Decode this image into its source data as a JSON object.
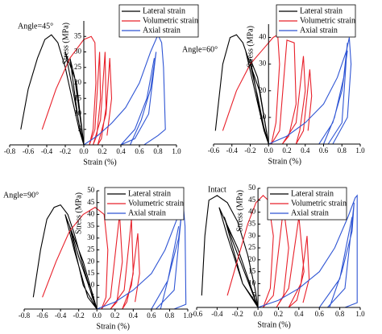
{
  "chart_data": [
    {
      "type": "line",
      "annotation": "Angle=45°",
      "x_label": "Strain (%)",
      "y_label": "Stress (MPa)",
      "xlim": [
        -0.8,
        1.0
      ],
      "xticks": [
        -0.8,
        -0.6,
        -0.4,
        -0.2,
        {
          "value": 0,
          "label": "0.0"
        },
        0.2,
        0.4,
        0.6,
        0.8,
        {
          "value": 1,
          "label": "1.0"
        }
      ],
      "ylim": [
        0,
        40
      ],
      "yticks": [
        5,
        10,
        15,
        20,
        25,
        30,
        35
      ],
      "series": [
        {
          "name": "Lateral strain",
          "color": "#000000",
          "x": [
            -0.68,
            -0.6,
            -0.5,
            -0.42,
            -0.35,
            -0.28,
            -0.2,
            -0.12,
            -0.05,
            0,
            -0.08,
            -0.2,
            -0.12,
            -0.04,
            0,
            -0.1,
            -0.15,
            -0.06,
            0
          ],
          "values": [
            5,
            18,
            28,
            34,
            35.5,
            33,
            25,
            14,
            5,
            0,
            20,
            30,
            18,
            5,
            0,
            22,
            28,
            8,
            0
          ]
        },
        {
          "name": "Volumetric strain",
          "color": "#e8202a",
          "x": [
            -0.45,
            -0.3,
            -0.15,
            0,
            0.08,
            0.12,
            0.13,
            0.1,
            0.06,
            0.12,
            0.17,
            0.18,
            0.14,
            0.1,
            0.18,
            0.23,
            0.24,
            0.19,
            0.15,
            0.24,
            0.28,
            0.3,
            0.25
          ],
          "values": [
            5,
            18,
            28,
            34,
            35,
            33,
            20,
            5,
            0,
            5,
            30,
            15,
            3,
            0,
            8,
            30,
            12,
            2,
            0,
            10,
            28,
            15,
            3
          ]
        },
        {
          "name": "Axial strain",
          "color": "#2f55d4",
          "x": [
            0,
            0.15,
            0.3,
            0.45,
            0.6,
            0.72,
            0.8,
            0.84,
            0.86,
            0.88,
            0.8,
            0.65,
            0.5,
            0.62,
            0.72,
            0.78,
            0.7,
            0.55,
            0.4,
            0.55,
            0.68,
            0.76
          ],
          "values": [
            0,
            3,
            7,
            12,
            20,
            30,
            35.5,
            33,
            25,
            5,
            3,
            0,
            0,
            8,
            18,
            30,
            10,
            2,
            0,
            5,
            15,
            28
          ]
        }
      ]
    },
    {
      "type": "line",
      "annotation": "Angle=60°",
      "x_label": "Strain (%)",
      "y_label": "Stress (MPa)",
      "xlim": [
        -0.6,
        1.0
      ],
      "xticks": [
        -0.6,
        -0.4,
        -0.2,
        {
          "value": 0,
          "label": "0.0"
        },
        0.2,
        0.4,
        0.6,
        0.8,
        {
          "value": 1,
          "label": "1.0"
        }
      ],
      "ylim": [
        0,
        45
      ],
      "yticks": [
        10,
        20,
        30,
        40
      ],
      "series": [
        {
          "name": "Lateral strain",
          "color": "#000000",
          "x": [
            -0.58,
            -0.5,
            -0.42,
            -0.35,
            -0.28,
            -0.2,
            -0.12,
            -0.05,
            0,
            -0.1,
            -0.25,
            -0.15,
            -0.05,
            0,
            -0.12,
            -0.2,
            -0.08,
            0
          ],
          "values": [
            5,
            30,
            40,
            41,
            38,
            30,
            18,
            6,
            0,
            20,
            35,
            20,
            5,
            0,
            25,
            32,
            10,
            0
          ]
        },
        {
          "name": "Volumetric strain",
          "color": "#e8202a",
          "x": [
            -0.5,
            -0.35,
            -0.2,
            -0.05,
            0.05,
            0.1,
            0.12,
            0.08,
            0.03,
            0.12,
            0.2,
            0.28,
            0.3,
            0.22,
            0.15,
            0.3,
            0.38,
            0.4,
            0.34,
            0.3,
            0.38,
            0.45,
            0.47,
            0.43
          ],
          "values": [
            5,
            20,
            30,
            36,
            40,
            41,
            30,
            8,
            0,
            5,
            39,
            38,
            15,
            3,
            0,
            8,
            33,
            20,
            5,
            0,
            5,
            28,
            18,
            5
          ]
        },
        {
          "name": "Axial strain",
          "color": "#2f55d4",
          "x": [
            0,
            0.2,
            0.4,
            0.6,
            0.75,
            0.85,
            0.88,
            0.9,
            0.86,
            0.7,
            0.6,
            0.72,
            0.82,
            0.86,
            0.8,
            0.65,
            0.55,
            0.7,
            0.8,
            0.86
          ],
          "values": [
            0,
            3,
            8,
            15,
            25,
            35,
            40,
            30,
            10,
            0,
            0,
            10,
            25,
            38,
            8,
            0,
            0,
            8,
            20,
            35
          ]
        }
      ]
    },
    {
      "type": "line",
      "annotation": "Angle=90°",
      "x_label": "Strain (%)",
      "y_label": "Stress (MPa)",
      "xlim": [
        -0.8,
        1.0
      ],
      "xticks": [
        -0.8,
        -0.6,
        -0.4,
        -0.2,
        {
          "value": 0,
          "label": "0.0"
        },
        0.2,
        0.4,
        0.6,
        0.8,
        {
          "value": 1,
          "label": "1.0"
        }
      ],
      "ylim": [
        0,
        50
      ],
      "yticks": [
        5,
        10,
        15,
        20,
        25,
        30,
        35,
        40,
        45,
        50
      ],
      "series": [
        {
          "name": "Lateral strain",
          "color": "#000000",
          "x": [
            -0.7,
            -0.62,
            -0.55,
            -0.47,
            -0.4,
            -0.32,
            -0.25,
            -0.15,
            -0.05,
            0,
            -0.15,
            -0.35,
            -0.25,
            -0.1,
            0,
            -0.2,
            -0.3,
            -0.15,
            0
          ],
          "values": [
            5,
            25,
            38,
            43,
            44,
            40,
            32,
            18,
            5,
            0,
            20,
            40,
            25,
            5,
            0,
            22,
            35,
            10,
            0
          ]
        },
        {
          "name": "Volumetric strain",
          "color": "#e8202a",
          "x": [
            -0.6,
            -0.45,
            -0.3,
            -0.15,
            -0.02,
            0.08,
            0.12,
            0.1,
            0.05,
            0.15,
            0.25,
            0.28,
            0.22,
            0.15,
            0.3,
            0.38,
            0.4,
            0.33,
            0.28,
            0.38,
            0.45,
            0.47,
            0.42
          ],
          "values": [
            5,
            20,
            33,
            40,
            43,
            40,
            25,
            5,
            0,
            5,
            40,
            20,
            3,
            0,
            8,
            38,
            15,
            3,
            0,
            10,
            32,
            15,
            3
          ]
        },
        {
          "name": "Axial strain",
          "color": "#2f55d4",
          "x": [
            0,
            0.2,
            0.4,
            0.6,
            0.75,
            0.88,
            0.95,
            0.97,
            0.98,
            0.85,
            0.7,
            0.8,
            0.9,
            0.93,
            0.85,
            0.65,
            0.6,
            0.78,
            0.9
          ],
          "values": [
            0,
            3,
            8,
            15,
            25,
            38,
            44,
            35,
            2,
            0,
            0,
            15,
            30,
            40,
            8,
            0,
            0,
            12,
            35
          ]
        }
      ]
    },
    {
      "type": "line",
      "annotation": "Intact",
      "x_label": "Strain (%)",
      "y_label": "Stress (MPa)",
      "xlim": [
        -0.6,
        1.0
      ],
      "xticks": [
        -0.6,
        -0.4,
        -0.2,
        {
          "value": 0,
          "label": "0.0"
        },
        0.2,
        0.4,
        0.6,
        0.8,
        {
          "value": 1,
          "label": "1.0"
        }
      ],
      "ylim": [
        0,
        50
      ],
      "yticks": [
        5,
        10,
        15,
        20,
        25,
        30,
        35,
        40,
        45,
        50
      ],
      "series": [
        {
          "name": "Lateral strain",
          "color": "#000000",
          "x": [
            -0.55,
            -0.52,
            -0.48,
            -0.4,
            -0.3,
            -0.2,
            -0.1,
            -0.03,
            0,
            -0.2,
            -0.38,
            -0.3,
            -0.15,
            -0.02,
            0,
            -0.25,
            -0.33,
            -0.15,
            0
          ],
          "values": [
            5,
            30,
            45,
            47,
            44,
            36,
            22,
            8,
            0,
            25,
            42,
            30,
            10,
            2,
            0,
            28,
            38,
            10,
            0
          ]
        },
        {
          "name": "Volumetric strain",
          "color": "#e8202a",
          "x": [
            -0.3,
            -0.2,
            -0.1,
            -0.02,
            0.05,
            0.1,
            0.15,
            0.12,
            0.05,
            0.15,
            0.25,
            0.3,
            0.25,
            0.18,
            0.3,
            0.4,
            0.45,
            0.38,
            0.3,
            0.42,
            0.48,
            0.5,
            0.44
          ],
          "values": [
            5,
            20,
            35,
            44,
            47,
            45,
            30,
            8,
            0,
            5,
            42,
            25,
            5,
            0,
            8,
            38,
            15,
            3,
            0,
            10,
            30,
            12,
            2
          ]
        },
        {
          "name": "Axial strain",
          "color": "#2f55d4",
          "x": [
            0,
            0.2,
            0.4,
            0.6,
            0.75,
            0.88,
            0.95,
            0.97,
            0.97,
            0.85,
            0.7,
            0.82,
            0.92,
            0.94,
            0.85,
            0.68,
            0.6,
            0.8,
            0.92
          ],
          "values": [
            0,
            3,
            8,
            15,
            25,
            38,
            46,
            47,
            2,
            0,
            0,
            15,
            32,
            44,
            8,
            0,
            0,
            12,
            38
          ]
        }
      ]
    }
  ]
}
